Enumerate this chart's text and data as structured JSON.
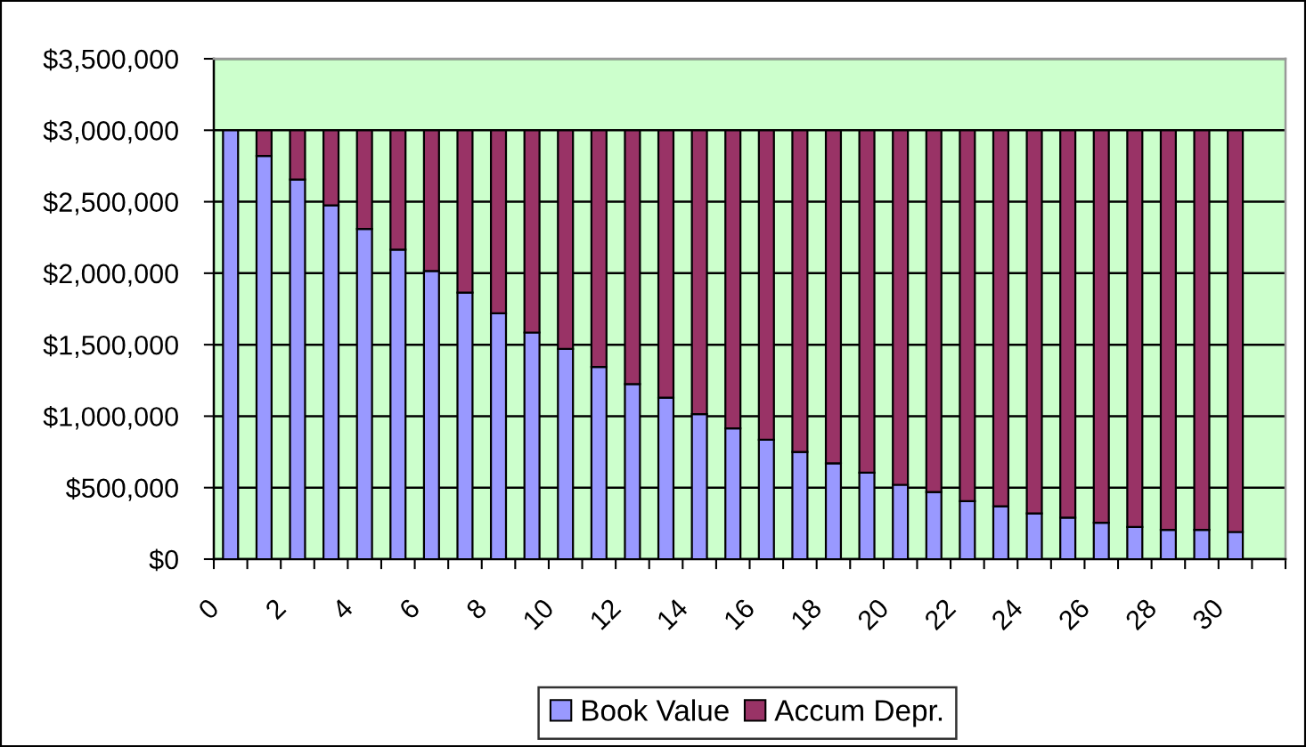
{
  "chart_data": {
    "type": "bar",
    "stacked": true,
    "categories": [
      "0",
      null,
      "2",
      null,
      "4",
      null,
      "6",
      null,
      "8",
      null,
      "10",
      null,
      "12",
      null,
      "14",
      null,
      "16",
      null,
      "18",
      null,
      "20",
      null,
      "22",
      null,
      "24",
      null,
      "26",
      null,
      "28",
      null,
      "30",
      null
    ],
    "series": [
      {
        "name": "Book Value",
        "color": "#9999ff",
        "values": [
          3000000,
          2820000,
          2655000,
          2475000,
          2310000,
          2165000,
          2015000,
          1865000,
          1720000,
          1585000,
          1470000,
          1345000,
          1225000,
          1130000,
          1015000,
          915000,
          835000,
          750000,
          670000,
          605000,
          520000,
          470000,
          405000,
          370000,
          320000,
          290000,
          255000,
          225000,
          205000,
          205000,
          190000,
          null
        ]
      },
      {
        "name": "Accum Depr.",
        "color": "#993366",
        "values": [
          0,
          180000,
          345000,
          525000,
          690000,
          835000,
          985000,
          1135000,
          1280000,
          1415000,
          1530000,
          1655000,
          1775000,
          1870000,
          1985000,
          2085000,
          2165000,
          2250000,
          2330000,
          2395000,
          2480000,
          2530000,
          2595000,
          2630000,
          2680000,
          2710000,
          2745000,
          2775000,
          2795000,
          2795000,
          2810000,
          null
        ]
      }
    ],
    "ylim": [
      0,
      3500000
    ],
    "yticks": [
      {
        "value": 0,
        "label": "$0"
      },
      {
        "value": 500000,
        "label": "$500,000"
      },
      {
        "value": 1000000,
        "label": "$1,000,000"
      },
      {
        "value": 1500000,
        "label": "$1,500,000"
      },
      {
        "value": 2000000,
        "label": "$2,000,000"
      },
      {
        "value": 2500000,
        "label": "$2,500,000"
      },
      {
        "value": 3000000,
        "label": "$3,000,000"
      },
      {
        "value": 3500000,
        "label": "$3,500,000"
      }
    ],
    "grid": "y",
    "legend": "bottom"
  }
}
